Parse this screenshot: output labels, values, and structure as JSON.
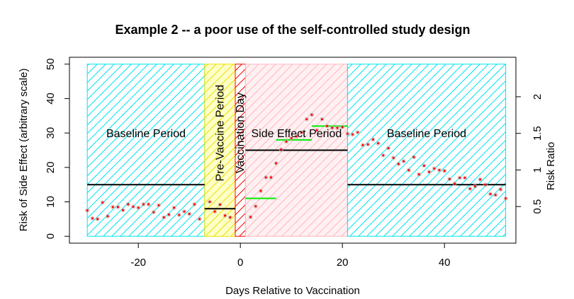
{
  "chart_data": {
    "type": "scatter",
    "title": "Example 2 -- a poor use of the self-controlled study design",
    "xlabel": "Days Relative to Vaccination",
    "ylabel": "Risk of Side Effect (arbitrary scale)",
    "y2label": "Risk Ratio",
    "xlim": [
      -33.5,
      54
    ],
    "ylim": [
      -2,
      52
    ],
    "y2lim": [
      0,
      2.54
    ],
    "xticks": [
      -20,
      0,
      20,
      40
    ],
    "yticks": [
      0,
      10,
      20,
      30,
      40,
      50
    ],
    "y2ticks": [
      0.5,
      1,
      1.5,
      2
    ],
    "y2tick_labels": [
      "0.5",
      "1",
      "1.5",
      "2"
    ],
    "regions": [
      {
        "label": "Baseline Period",
        "x0": -30,
        "x1": -7,
        "border": "#00e5ee",
        "hatch": "#00e5ee",
        "fill": "none",
        "label_y": 30
      },
      {
        "label": "Pre-Vaccine Period",
        "x0": -7,
        "x1": -1,
        "border": "#e8e000",
        "hatch": "#e8e000",
        "fill": "#ffffc8",
        "label_y": 30,
        "vertical": true
      },
      {
        "label": "Vaccination Day",
        "x0": -1,
        "x1": 1,
        "border": "#ff0000",
        "hatch": "#ff0000",
        "fill": "none",
        "label_y": 30,
        "vertical": true
      },
      {
        "label": "Side Effect Period",
        "x0": 1,
        "x1": 21,
        "border": "#ffb6c1",
        "hatch": "#ffb6c1",
        "fill": "#fff0f2",
        "label_y": 30
      },
      {
        "label": "Baseline Period",
        "x0": 21,
        "x1": 52,
        "border": "#00e5ee",
        "hatch": "#00e5ee",
        "fill": "none",
        "label_y": 30
      }
    ],
    "mean_lines": [
      {
        "x0": -30,
        "x1": -7,
        "y": 15,
        "color": "#000000"
      },
      {
        "x0": -7,
        "x1": -1,
        "y": 8,
        "color": "#000000"
      },
      {
        "x0": 1,
        "x1": 21,
        "y": 25,
        "color": "#000000"
      },
      {
        "x0": 21,
        "x1": 52,
        "y": 15,
        "color": "#000000"
      }
    ],
    "ratio_lines": [
      {
        "x0": 1,
        "x1": 7,
        "y": 11,
        "color": "#00ee00"
      },
      {
        "x0": 7,
        "x1": 14,
        "y": 28,
        "color": "#00ee00"
      },
      {
        "x0": 14,
        "x1": 21,
        "y": 32,
        "color": "#00ee00"
      }
    ],
    "series": [
      {
        "color": "#ff0000",
        "points": [
          [
            -30,
            7.5
          ],
          [
            -29,
            5.2
          ],
          [
            -28,
            5
          ],
          [
            -27,
            9.8
          ],
          [
            -26,
            5.8
          ],
          [
            -25,
            8.5
          ],
          [
            -24,
            8.5
          ],
          [
            -23,
            7.6
          ],
          [
            -22,
            9.3
          ],
          [
            -21,
            8.6
          ],
          [
            -20,
            8.3
          ],
          [
            -19,
            9.3
          ],
          [
            -18,
            9.3
          ],
          [
            -17,
            7.0
          ],
          [
            -16,
            9.0
          ],
          [
            -15,
            5.5
          ],
          [
            -14,
            6.3
          ],
          [
            -13,
            8.3
          ],
          [
            -12,
            6.2
          ],
          [
            -11,
            7.2
          ],
          [
            -10,
            6.5
          ],
          [
            -9,
            9.3
          ],
          [
            -8,
            5.0
          ],
          [
            -6,
            10.0
          ],
          [
            -5,
            7.2
          ],
          [
            -4,
            9.2
          ],
          [
            -3,
            6.0
          ],
          [
            -2,
            5.5
          ],
          [
            2,
            5.6
          ],
          [
            3,
            8.7
          ],
          [
            4,
            13.2
          ],
          [
            5,
            17.1
          ],
          [
            6,
            17.1
          ],
          [
            7,
            21.2
          ],
          [
            8,
            25.2
          ],
          [
            9,
            27.5
          ],
          [
            10,
            28.5
          ],
          [
            11,
            29.0
          ],
          [
            12,
            30.1
          ],
          [
            13,
            34.0
          ],
          [
            14,
            35.3
          ],
          [
            15,
            30.8
          ],
          [
            16,
            34.0
          ],
          [
            17,
            32.0
          ],
          [
            18,
            31.5
          ],
          [
            19,
            31.5
          ],
          [
            20,
            31.7
          ],
          [
            21,
            29.8
          ],
          [
            22,
            29.6
          ],
          [
            23,
            30.2
          ],
          [
            24,
            26.5
          ],
          [
            25,
            26.7
          ],
          [
            26,
            28.1
          ],
          [
            27,
            27.0
          ],
          [
            28,
            23.5
          ],
          [
            29,
            25.6
          ],
          [
            30,
            22.8
          ],
          [
            31,
            21.0
          ],
          [
            32,
            21.8
          ],
          [
            33,
            19.2
          ],
          [
            34,
            23.0
          ],
          [
            35,
            18.0
          ],
          [
            36,
            20.5
          ],
          [
            37,
            18.7
          ],
          [
            38,
            19.7
          ],
          [
            39,
            19.2
          ],
          [
            40,
            19.0
          ],
          [
            41,
            16.6
          ],
          [
            42,
            15.3
          ],
          [
            43,
            17.0
          ],
          [
            44,
            17.0
          ],
          [
            45,
            13.8
          ],
          [
            46,
            14.5
          ],
          [
            47,
            16.5
          ],
          [
            48,
            15.0
          ],
          [
            49,
            12.3
          ],
          [
            50,
            12.0
          ],
          [
            51,
            13.6
          ],
          [
            52,
            11.0
          ]
        ]
      }
    ]
  }
}
